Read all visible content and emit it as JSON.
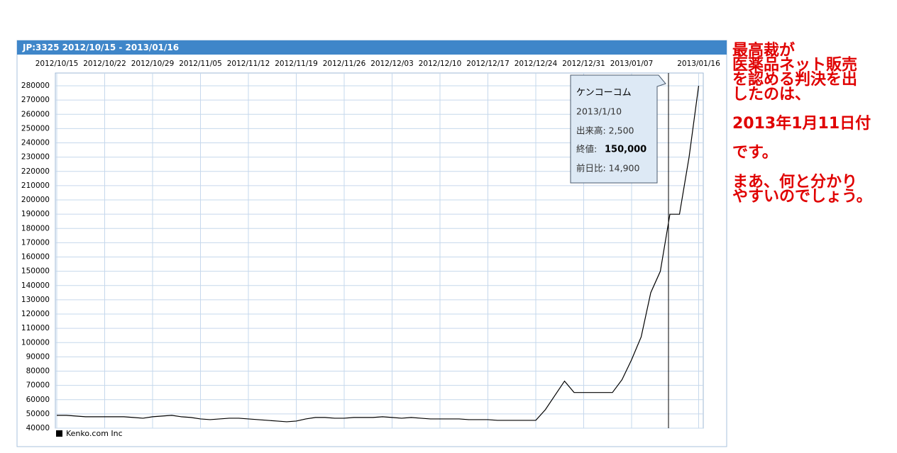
{
  "chart_data": {
    "type": "line",
    "title": "JP:3325 2012/10/15 - 2013/01/16",
    "categories": [
      "2012/10/15",
      null,
      null,
      null,
      null,
      "2012/10/22",
      null,
      null,
      null,
      null,
      "2012/10/29",
      null,
      null,
      null,
      null,
      "2012/11/05",
      null,
      null,
      null,
      null,
      "2012/11/12",
      null,
      null,
      null,
      null,
      "2012/11/19",
      null,
      null,
      null,
      null,
      "2012/11/26",
      null,
      null,
      null,
      null,
      "2012/12/03",
      null,
      null,
      null,
      null,
      "2012/12/10",
      null,
      null,
      null,
      null,
      "2012/12/17",
      null,
      null,
      null,
      null,
      "2012/12/24",
      null,
      null,
      null,
      null,
      "2012/12/31",
      null,
      null,
      null,
      null,
      "2013/01/07",
      null,
      null,
      null,
      null,
      null,
      null,
      "2013/01/16"
    ],
    "series": [
      {
        "name": "Kenko.com Inc",
        "color": "#000000",
        "values": [
          49000,
          49000,
          48500,
          48000,
          48000,
          48000,
          48000,
          48000,
          47500,
          47000,
          48000,
          48500,
          49000,
          48000,
          47500,
          46500,
          46000,
          46500,
          47000,
          47000,
          46500,
          46000,
          45500,
          45000,
          44500,
          45000,
          46500,
          47500,
          47500,
          47000,
          47000,
          47500,
          47500,
          47500,
          48000,
          47500,
          47000,
          47500,
          47000,
          46500,
          46500,
          46500,
          46500,
          46000,
          46000,
          46000,
          45500,
          45500,
          45500,
          45500,
          45500,
          53000,
          63000,
          73000,
          65000,
          65000,
          65000,
          65000,
          65000,
          74000,
          88000,
          104000,
          135000,
          150000,
          190000,
          190000,
          230000,
          280000
        ]
      }
    ],
    "ylim": [
      40000,
      285000
    ],
    "yticks": [
      40000,
      50000,
      60000,
      70000,
      80000,
      90000,
      100000,
      110000,
      120000,
      130000,
      140000,
      150000,
      160000,
      170000,
      180000,
      190000,
      200000,
      210000,
      220000,
      230000,
      240000,
      250000,
      260000,
      270000,
      280000
    ],
    "grid": true,
    "tooltip": {
      "name": "ケンコーコム",
      "date": "2013/1/10",
      "volume": "出来高: 2,500",
      "close_label": "終値:",
      "close": "150,000",
      "change": "前日比: 14,900"
    },
    "annotation": [
      "最高裁が",
      "医薬品ネット販売",
      "を認める判決を出",
      "したのは、",
      "",
      "2013年1月11日付",
      "",
      "です。",
      "",
      "まあ、何と分かり",
      "やすいのでしょう。"
    ]
  }
}
